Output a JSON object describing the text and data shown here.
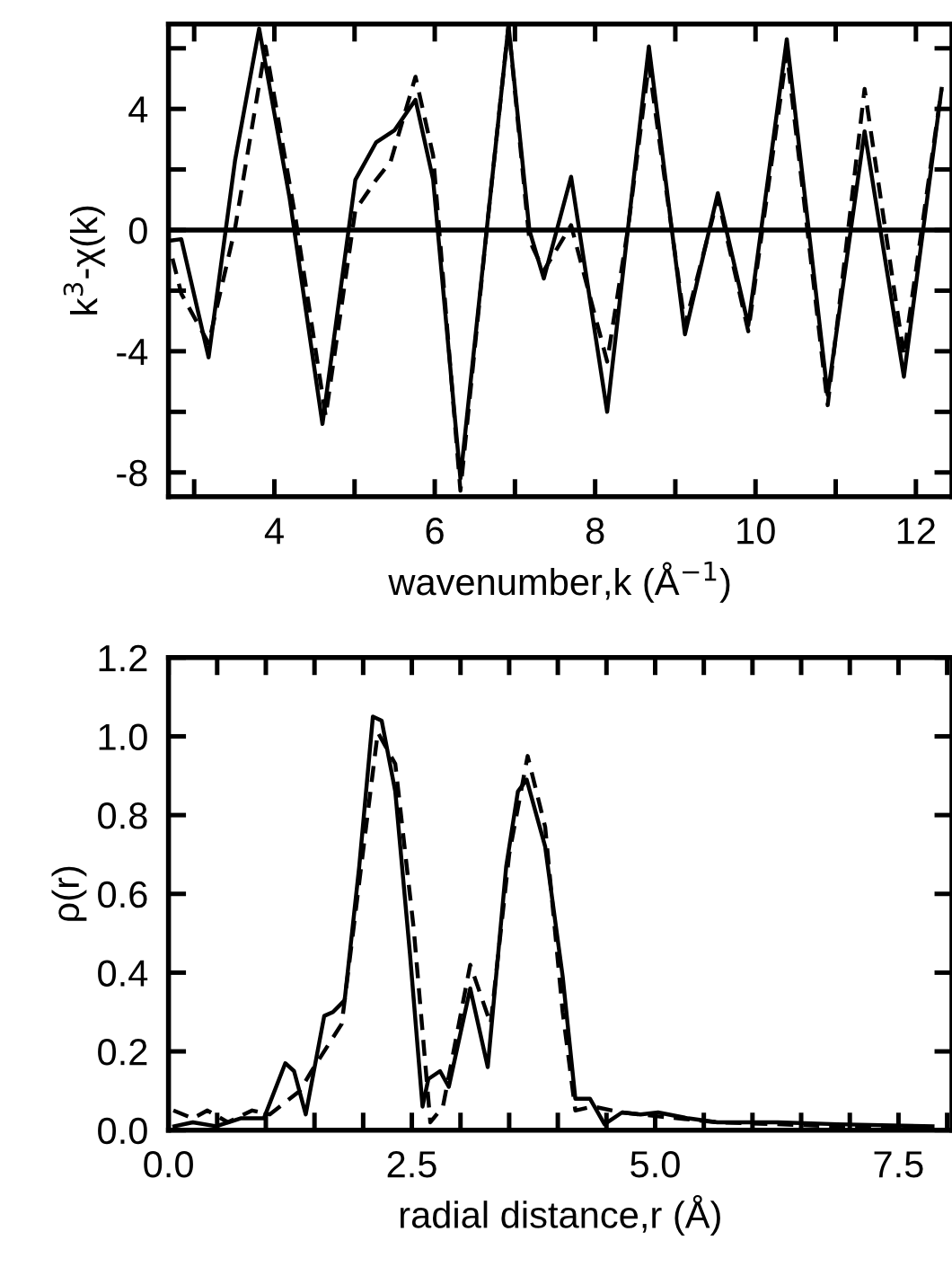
{
  "chart_data": [
    {
      "type": "line",
      "xlabel": "wavenumber,k (Å$^{−1}$)",
      "ylabel": "k$^{3}$-χ(k)",
      "xlim": [
        2.68,
        12.45
      ],
      "ylim": [
        -8.8,
        6.8
      ],
      "xticks": [
        {
          "value": 3,
          "label": null
        },
        4,
        {
          "value": 5,
          "label": null
        },
        6,
        {
          "value": 7,
          "label": null
        },
        8,
        {
          "value": 9,
          "label": null
        },
        10,
        {
          "value": 11,
          "label": null
        },
        12
      ],
      "yticks": [
        -8,
        {
          "value": -6,
          "label": null
        },
        -4,
        {
          "value": -2,
          "label": null
        },
        0,
        {
          "value": 2,
          "label": null
        },
        4,
        {
          "value": 6,
          "label": null
        }
      ],
      "ref_lines": [
        {
          "axis": "y",
          "value": 0,
          "color": "#000000",
          "line_style": "solid"
        }
      ],
      "grid": false,
      "legend": false,
      "marker": "none",
      "series": [
        {
          "color": "#000000",
          "line_style": "solid",
          "x": [
            2.73,
            2.84,
            3.18,
            3.51,
            3.81,
            4.19,
            4.6,
            5.01,
            5.27,
            5.5,
            5.76,
            5.98,
            6.32,
            6.65,
            6.92,
            7.18,
            7.36,
            7.7,
            8.15,
            8.41,
            8.67,
            9.12,
            9.53,
            9.91,
            10.39,
            10.9,
            11.36,
            11.85,
            12.32
          ],
          "values": [
            -0.34,
            -0.3,
            -4.2,
            2.3,
            6.65,
            1.06,
            -6.4,
            1.66,
            2.9,
            3.3,
            4.3,
            1.66,
            -8.2,
            0.06,
            6.76,
            0,
            -1.6,
            1.76,
            -6.0,
            0.06,
            6.06,
            -3.44,
            1.22,
            -3.14,
            6.3,
            -5.44,
            3.26,
            -4.84,
            4.66
          ]
        },
        {
          "color": "#000000",
          "line_style": "dashed",
          "x": [
            2.73,
            2.84,
            3.18,
            3.51,
            3.89,
            4.26,
            4.64,
            5.01,
            5.27,
            5.45,
            5.76,
            5.98,
            6.32,
            6.65,
            6.92,
            7.18,
            7.36,
            7.7,
            8.15,
            8.41,
            8.67,
            9.12,
            9.53,
            9.91,
            10.39,
            10.9,
            11.36,
            11.85,
            12.32
          ],
          "values": [
            -0.94,
            -2.1,
            -3.74,
            0.06,
            6.06,
            0.46,
            -6.14,
            0.66,
            1.66,
            2.26,
            5.06,
            2.46,
            -8.6,
            0.06,
            6.76,
            -0.34,
            -1.34,
            0.16,
            -4.34,
            0.06,
            5.46,
            -3.14,
            1.06,
            -3.34,
            5.86,
            -5.78,
            4.66,
            -4.14,
            4.66
          ]
        }
      ]
    },
    {
      "type": "line",
      "xlabel": "radial distance,r (Å)",
      "ylabel": "ρ(r)",
      "xlim": [
        0,
        8.05
      ],
      "ylim": [
        0,
        1.2
      ],
      "xticks": [
        {
          "value": 0,
          "label": "0.0"
        },
        {
          "value": 0.5,
          "label": null
        },
        {
          "value": 1,
          "label": null
        },
        {
          "value": 1.5,
          "label": null
        },
        {
          "value": 2,
          "label": null
        },
        2.5,
        {
          "value": 3,
          "label": null
        },
        {
          "value": 3.5,
          "label": null
        },
        {
          "value": 4,
          "label": null
        },
        {
          "value": 4.5,
          "label": null
        },
        {
          "value": 5,
          "label": "5.0"
        },
        {
          "value": 5.5,
          "label": null
        },
        {
          "value": 6,
          "label": null
        },
        {
          "value": 6.5,
          "label": null
        },
        {
          "value": 7,
          "label": null
        },
        7.5,
        {
          "value": 8,
          "label": null
        }
      ],
      "yticks": [
        {
          "value": 0,
          "label": "0.0"
        },
        0.2,
        0.4,
        0.6,
        0.8,
        {
          "value": 1,
          "label": "1.0"
        },
        1.2
      ],
      "grid": false,
      "legend": false,
      "marker": "none",
      "series": [
        {
          "color": "#000000",
          "line_style": "solid",
          "x": [
            0.06,
            0.25,
            0.49,
            0.74,
            0.98,
            1.2,
            1.29,
            1.41,
            1.6,
            1.69,
            1.81,
            1.96,
            2.1,
            2.19,
            2.33,
            2.48,
            2.61,
            2.67,
            2.79,
            2.88,
            3.1,
            3.28,
            3.47,
            3.59,
            3.68,
            3.87,
            4.05,
            4.18,
            4.33,
            4.48,
            4.66,
            4.85,
            5.03,
            5.34,
            5.64,
            6.26,
            6.87,
            7.85
          ],
          "values": [
            0.01,
            0.02,
            0.01,
            0.03,
            0.03,
            0.17,
            0.15,
            0.04,
            0.29,
            0.3,
            0.33,
            0.67,
            1.05,
            1.04,
            0.86,
            0.45,
            0.06,
            0.13,
            0.15,
            0.11,
            0.36,
            0.16,
            0.67,
            0.86,
            0.89,
            0.72,
            0.39,
            0.08,
            0.08,
            0.015,
            0.045,
            0.04,
            0.045,
            0.03,
            0.02,
            0.02,
            0.015,
            0.01
          ]
        },
        {
          "color": "#000000",
          "line_style": "dashed",
          "x": [
            0.05,
            0.25,
            0.4,
            0.61,
            0.86,
            1.04,
            1.35,
            1.47,
            1.78,
            1.96,
            2.15,
            2.33,
            2.52,
            2.69,
            2.82,
            3.1,
            3.31,
            3.5,
            3.69,
            3.87,
            4.05,
            4.18,
            4.36,
            4.66,
            5.03,
            5.64,
            6.87,
            7.85
          ],
          "values": [
            0.05,
            0.03,
            0.05,
            0.02,
            0.05,
            0.04,
            0.1,
            0.15,
            0.27,
            0.63,
            1.01,
            0.93,
            0.51,
            0.02,
            0.06,
            0.42,
            0.27,
            0.7,
            0.95,
            0.77,
            0.3,
            0.05,
            0.06,
            0.045,
            0.035,
            0.02,
            0.01,
            0.01
          ]
        }
      ]
    }
  ]
}
